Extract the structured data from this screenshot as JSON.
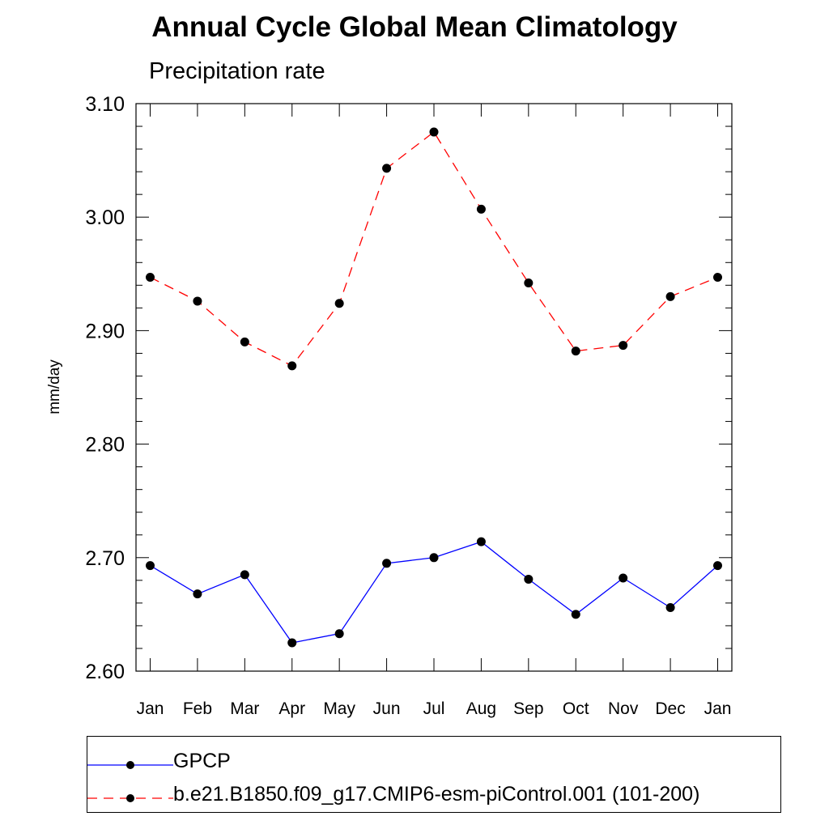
{
  "chart_data": {
    "type": "line",
    "title": "Annual Cycle Global Mean Climatology",
    "subtitle": "Precipitation rate",
    "ylabel": "mm/day",
    "xlabel": "",
    "categories": [
      "Jan",
      "Feb",
      "Mar",
      "Apr",
      "May",
      "Jun",
      "Jul",
      "Aug",
      "Sep",
      "Oct",
      "Nov",
      "Dec",
      "Jan"
    ],
    "ylim": [
      2.6,
      3.1
    ],
    "yticks": [
      "2.60",
      "2.70",
      "2.80",
      "2.90",
      "3.00",
      "3.10"
    ],
    "grid": false,
    "legend_position": "bottom",
    "series": [
      {
        "name": "GPCP",
        "color": "#0000ff",
        "line_style": "solid",
        "marker": "filled-circle",
        "values": [
          2.693,
          2.668,
          2.685,
          2.625,
          2.633,
          2.695,
          2.7,
          2.714,
          2.681,
          2.65,
          2.682,
          2.656,
          2.693
        ]
      },
      {
        "name": "b.e21.B1850.f09_g17.CMIP6-esm-piControl.001 (101-200)",
        "color": "#ff0000",
        "line_style": "dashed",
        "marker": "filled-circle",
        "values": [
          2.947,
          2.926,
          2.89,
          2.869,
          2.924,
          3.043,
          3.075,
          3.007,
          2.942,
          2.882,
          2.887,
          2.93,
          2.947
        ]
      }
    ]
  }
}
